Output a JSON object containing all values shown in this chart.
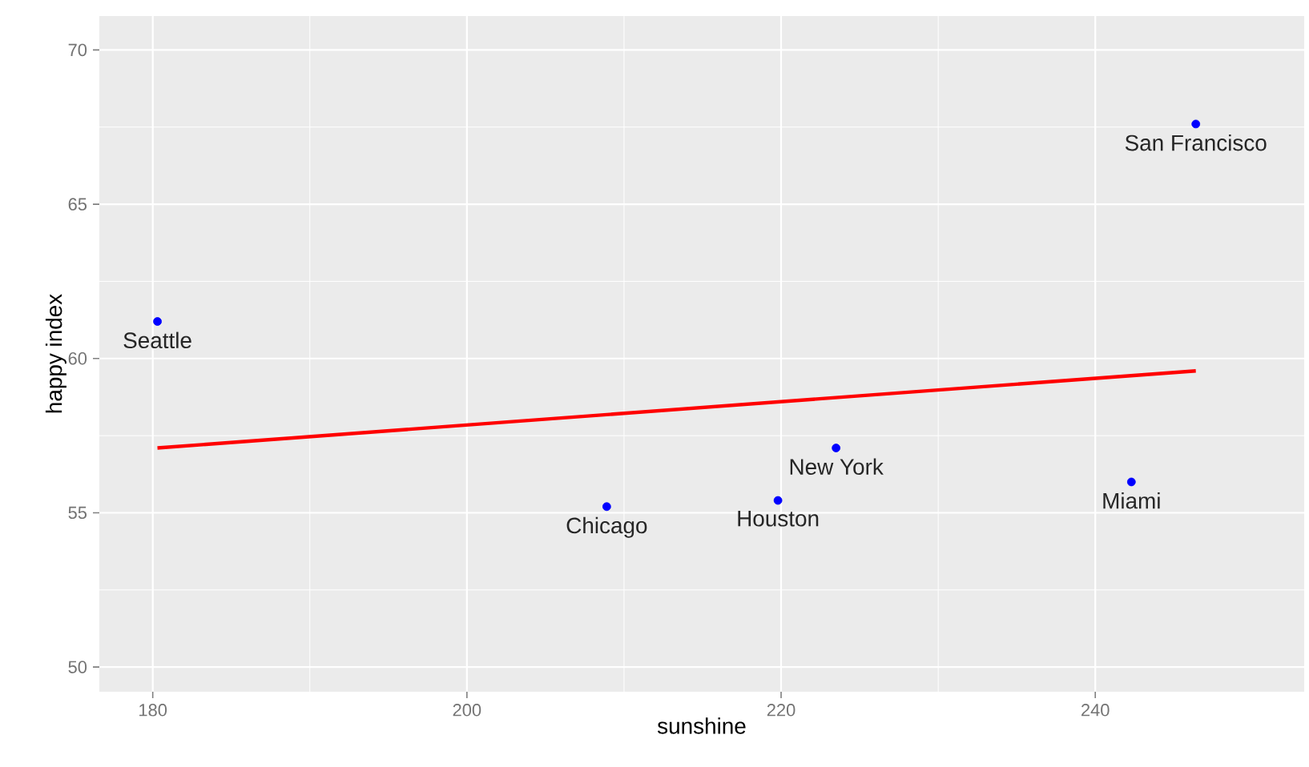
{
  "chart_data": {
    "type": "scatter",
    "xlabel": "sunshine",
    "ylabel": "happy index",
    "xlim": [
      176.6,
      253.3
    ],
    "ylim": [
      49.2,
      71.1
    ],
    "xticks": [
      180,
      200,
      220,
      240
    ],
    "yticks": [
      50,
      55,
      60,
      65,
      70
    ],
    "grid": true,
    "series": [
      {
        "color": "#0000ff",
        "marker": "circle",
        "x": [
          180.3,
          208.9,
          219.8,
          223.5,
          242.3,
          246.4
        ],
        "values": [
          61.2,
          55.2,
          55.4,
          57.1,
          56.0,
          67.6
        ]
      },
      {
        "type": "line",
        "color": "#ff0000",
        "marker": "none",
        "x": [
          180.3,
          246.4
        ],
        "values": [
          57.1,
          59.6
        ]
      }
    ],
    "annotations": [
      {
        "text": "Seattle",
        "x": 180.3,
        "y": 61.2
      },
      {
        "text": "Chicago",
        "x": 208.9,
        "y": 55.2
      },
      {
        "text": "Houston",
        "x": 219.8,
        "y": 55.4
      },
      {
        "text": "New York",
        "x": 223.5,
        "y": 57.1
      },
      {
        "text": "Miami",
        "x": 242.3,
        "y": 56.0
      },
      {
        "text": "San Francisco",
        "x": 246.4,
        "y": 67.6
      }
    ]
  }
}
